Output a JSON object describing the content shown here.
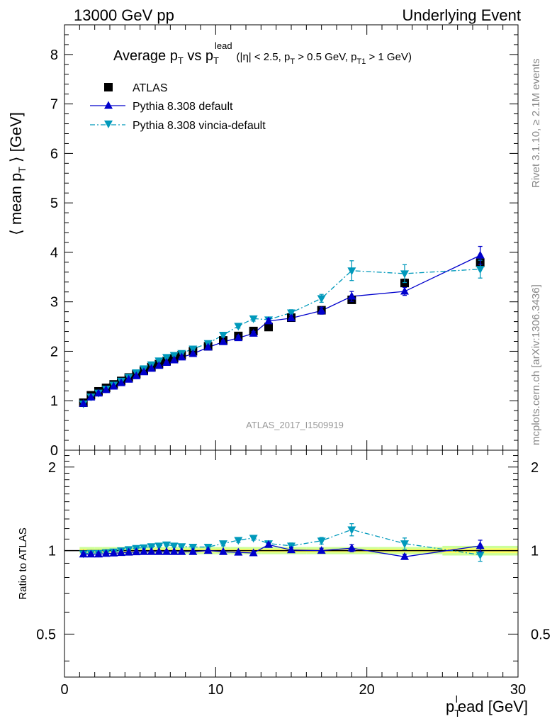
{
  "header": {
    "left": "13000 GeV pp",
    "right": "Underlying Event"
  },
  "side_labels": {
    "rivet": "Rivet 3.1.10, ≥ 2.1M events",
    "mcplots": "mcplots.cern.ch [arXiv:1306.3436]"
  },
  "watermark": "ATLAS_2017_I1509919",
  "colors": {
    "atlas": "#000000",
    "pythia_default": "#0000cc",
    "pythia_vincia": "#0099bb",
    "band_inner": "#ffff66",
    "band_outer": "#ccff99"
  },
  "chart_data": [
    {
      "type": "scatter",
      "panel": "main",
      "title": {
        "main": "Average p",
        "main_sub": "T",
        "vs": " vs p",
        "vs_sub": "T",
        "vs_sup": "lead",
        "cuts_1": "(|η| < 2.5, p",
        "cuts_1_sub": "T",
        "cuts_2": " > 0.5 GeV, p",
        "cuts_2_sub": "T1",
        "cuts_3": " > 1 GeV)"
      },
      "ylabel": {
        "pre": "⟨ mean p",
        "sub": "T",
        "post": " ⟩ [GeV]"
      },
      "xlim": [
        0,
        30
      ],
      "ylim": [
        0,
        8.6
      ],
      "yticks": [
        0,
        1,
        2,
        3,
        4,
        5,
        6,
        7,
        8
      ],
      "legend_position": "top-left",
      "legend": [
        {
          "name": "ATLAS",
          "marker": "square"
        },
        {
          "name": "Pythia 8.308 default",
          "marker": "triangle-up",
          "line": "solid"
        },
        {
          "name": "Pythia 8.308 vincia-default",
          "marker": "triangle-down",
          "line": "dash-dot"
        }
      ],
      "x": [
        1.25,
        1.75,
        2.25,
        2.75,
        3.25,
        3.75,
        4.25,
        4.75,
        5.25,
        5.75,
        6.25,
        6.75,
        7.25,
        7.75,
        8.5,
        9.5,
        10.5,
        11.5,
        12.5,
        13.5,
        15.0,
        17.0,
        19.0,
        22.5,
        27.5
      ],
      "series": [
        {
          "name": "ATLAS",
          "values": [
            0.96,
            1.11,
            1.19,
            1.26,
            1.33,
            1.4,
            1.47,
            1.54,
            1.61,
            1.68,
            1.74,
            1.8,
            1.86,
            1.92,
            2.0,
            2.1,
            2.22,
            2.31,
            2.41,
            2.49,
            2.68,
            2.83,
            3.04,
            3.38,
            3.79
          ],
          "errors": [
            0.02,
            0.02,
            0.02,
            0.02,
            0.02,
            0.02,
            0.02,
            0.02,
            0.02,
            0.02,
            0.02,
            0.02,
            0.02,
            0.02,
            0.03,
            0.03,
            0.03,
            0.03,
            0.04,
            0.04,
            0.04,
            0.05,
            0.06,
            0.08,
            0.1
          ]
        },
        {
          "name": "Pythia 8.308 default",
          "values": [
            0.94,
            1.07,
            1.15,
            1.22,
            1.29,
            1.36,
            1.43,
            1.5,
            1.58,
            1.65,
            1.71,
            1.77,
            1.82,
            1.88,
            1.95,
            2.08,
            2.19,
            2.27,
            2.36,
            2.61,
            2.67,
            2.82,
            3.11,
            3.21,
            3.94
          ],
          "errors": [
            0.01,
            0.01,
            0.01,
            0.01,
            0.01,
            0.01,
            0.01,
            0.01,
            0.01,
            0.01,
            0.01,
            0.02,
            0.02,
            0.02,
            0.02,
            0.03,
            0.03,
            0.04,
            0.04,
            0.05,
            0.05,
            0.07,
            0.1,
            0.08,
            0.18
          ]
        },
        {
          "name": "Pythia 8.308 vincia-default",
          "values": [
            0.94,
            1.08,
            1.16,
            1.24,
            1.32,
            1.4,
            1.48,
            1.57,
            1.65,
            1.73,
            1.81,
            1.88,
            1.92,
            1.96,
            2.05,
            2.16,
            2.33,
            2.51,
            2.66,
            2.64,
            2.78,
            3.07,
            3.63,
            3.57,
            3.66
          ],
          "errors": [
            0.01,
            0.01,
            0.01,
            0.01,
            0.01,
            0.01,
            0.01,
            0.01,
            0.01,
            0.01,
            0.02,
            0.02,
            0.02,
            0.02,
            0.03,
            0.03,
            0.04,
            0.04,
            0.05,
            0.05,
            0.06,
            0.08,
            0.2,
            0.18,
            0.18
          ]
        }
      ]
    },
    {
      "type": "line",
      "panel": "ratio",
      "ylabel": "Ratio to ATLAS",
      "xlabel": {
        "pre": "p",
        "sub": "T",
        "sup": "l",
        "post": "ead [GeV]"
      },
      "xlim": [
        0,
        30
      ],
      "ylim": [
        0.35,
        2.3
      ],
      "yticks": [
        0.5,
        1,
        2
      ],
      "ytick_labels": [
        "0.5",
        "1",
        "2"
      ],
      "xticks": [
        0,
        10,
        20,
        30
      ],
      "xtick_labels": [
        "0",
        "10",
        "20",
        "30"
      ],
      "reference_line": 1,
      "band": {
        "lower": [
          0.97,
          0.97,
          0.97,
          0.97,
          0.97,
          0.97,
          0.97,
          0.97,
          0.97,
          0.97,
          0.97,
          0.97,
          0.97,
          0.97,
          0.97,
          0.97,
          0.97,
          0.97,
          0.97,
          0.97,
          0.97,
          0.97,
          0.97,
          0.97,
          0.96
        ],
        "upper": [
          1.03,
          1.03,
          1.03,
          1.03,
          1.03,
          1.03,
          1.03,
          1.03,
          1.03,
          1.03,
          1.03,
          1.03,
          1.03,
          1.03,
          1.03,
          1.03,
          1.03,
          1.03,
          1.03,
          1.03,
          1.03,
          1.03,
          1.03,
          1.03,
          1.04
        ]
      },
      "series": [
        {
          "name": "Pythia 8.308 default",
          "values": [
            0.97,
            0.97,
            0.97,
            0.975,
            0.978,
            0.982,
            0.985,
            0.988,
            0.99,
            0.99,
            0.99,
            0.99,
            0.99,
            0.99,
            0.99,
            1.0,
            0.99,
            0.985,
            0.98,
            1.05,
            1.005,
            1.0,
            1.02,
            0.95,
            1.04
          ],
          "errors": [
            0.01,
            0.01,
            0.01,
            0.01,
            0.01,
            0.01,
            0.01,
            0.01,
            0.01,
            0.01,
            0.01,
            0.01,
            0.01,
            0.01,
            0.01,
            0.01,
            0.01,
            0.01,
            0.015,
            0.015,
            0.02,
            0.02,
            0.03,
            0.02,
            0.05
          ]
        },
        {
          "name": "Pythia 8.308 vincia-default",
          "values": [
            0.975,
            0.98,
            0.98,
            0.985,
            0.99,
            1.0,
            1.01,
            1.02,
            1.025,
            1.035,
            1.04,
            1.05,
            1.04,
            1.035,
            1.03,
            1.03,
            1.06,
            1.09,
            1.11,
            1.06,
            1.04,
            1.085,
            1.19,
            1.06,
            0.965
          ],
          "errors": [
            0.01,
            0.01,
            0.01,
            0.01,
            0.01,
            0.01,
            0.01,
            0.01,
            0.01,
            0.01,
            0.01,
            0.01,
            0.01,
            0.01,
            0.015,
            0.015,
            0.02,
            0.02,
            0.02,
            0.02,
            0.025,
            0.03,
            0.06,
            0.05,
            0.05
          ]
        }
      ]
    }
  ]
}
